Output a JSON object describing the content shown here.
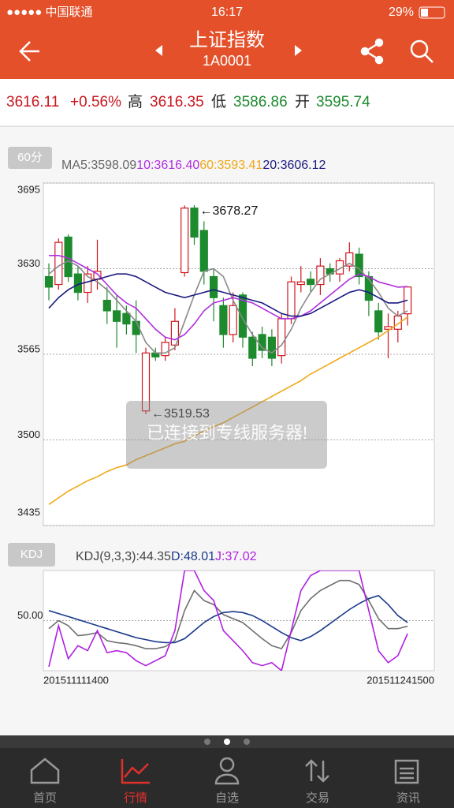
{
  "status_bar": {
    "carrier": "●●●●● 中国联通",
    "time": "16:17",
    "battery": "29%"
  },
  "header": {
    "title": "上证指数",
    "code": "1A0001"
  },
  "quote": {
    "price": "3616.11",
    "change": "+0.56%",
    "high_label": "高",
    "high": "3616.35",
    "low_label": "低",
    "low": "3586.86",
    "open_label": "开",
    "open": "3595.74"
  },
  "toast": "已连接到专线服务器!",
  "tabs": [
    "首页",
    "行情",
    "自选",
    "交易",
    "资讯"
  ],
  "chart_data": [
    {
      "type": "candlestick",
      "period_button": "60分",
      "up_color": "#d0161e",
      "down_color": "#1d8a2e",
      "open": [
        3624,
        3618,
        3654,
        3626,
        3612,
        3622,
        3606,
        3598,
        3596,
        3590,
        3522,
        3566,
        3564,
        3572,
        3627,
        3676,
        3659,
        3624,
        3602,
        3580,
        3610,
        3578,
        3580,
        3578,
        3564,
        3592,
        3618,
        3622,
        3618,
        3630,
        3626,
        3632,
        3641,
        3624,
        3598,
        3584,
        3584,
        3595.74
      ],
      "high": [
        3634,
        3653,
        3656,
        3632,
        3632,
        3652,
        3616,
        3610,
        3602,
        3606,
        3570,
        3570,
        3578,
        3600,
        3678,
        3678.27,
        3666,
        3630,
        3608,
        3612,
        3612,
        3582,
        3586,
        3584,
        3596,
        3624,
        3632,
        3628,
        3638,
        3634,
        3638,
        3650,
        3646,
        3628,
        3604,
        3596,
        3598,
        3616.35
      ],
      "low": [
        3606,
        3614,
        3620,
        3606,
        3604,
        3614,
        3588,
        3570,
        3580,
        3566,
        3519.53,
        3560,
        3560,
        3568,
        3624,
        3648,
        3618,
        3590,
        3570,
        3574,
        3570,
        3556,
        3562,
        3556,
        3558,
        3588,
        3612,
        3612,
        3610,
        3620,
        3620,
        3628,
        3618,
        3594,
        3576,
        3562,
        3574,
        3586.86
      ],
      "close": [
        3616,
        3650,
        3624,
        3612,
        3626,
        3628,
        3598,
        3590,
        3588,
        3580,
        3566,
        3563,
        3574,
        3590,
        3676,
        3654,
        3628,
        3608,
        3580,
        3602,
        3578,
        3562,
        3568,
        3562,
        3592,
        3620,
        3620,
        3618,
        3632,
        3626,
        3636,
        3642,
        3624,
        3606,
        3582,
        3586,
        3594,
        3616.11
      ],
      "series": [
        {
          "name": "MA5:3598.09",
          "color": "#8a8a8a",
          "values": [
            3626,
            3632,
            3636,
            3632,
            3624,
            3620,
            3614,
            3606,
            3598,
            3590,
            3574,
            3566,
            3566,
            3570,
            3590,
            3610,
            3628,
            3630,
            3624,
            3606,
            3592,
            3580,
            3570,
            3566,
            3572,
            3584,
            3600,
            3612,
            3622,
            3626,
            3630,
            3634,
            3630,
            3622,
            3612,
            3600,
            3594,
            3598.09
          ]
        },
        {
          "name": "10:3616.40",
          "color": "#b02ee0",
          "values": [
            3640,
            3640,
            3638,
            3634,
            3630,
            3626,
            3618,
            3610,
            3604,
            3600,
            3592,
            3584,
            3578,
            3576,
            3580,
            3588,
            3598,
            3604,
            3606,
            3608,
            3606,
            3604,
            3600,
            3596,
            3592,
            3592,
            3594,
            3598,
            3604,
            3610,
            3616,
            3622,
            3626,
            3624,
            3620,
            3618,
            3616,
            3616.4
          ]
        },
        {
          "name": "60:3593.41",
          "color": "#f0a818",
          "values": [
            3451,
            3456,
            3461,
            3465,
            3469,
            3472,
            3476,
            3479,
            3481,
            3485,
            3488,
            3491,
            3494,
            3497,
            3499,
            3503,
            3507,
            3510,
            3513,
            3517,
            3521,
            3525,
            3529,
            3533,
            3537,
            3541,
            3545,
            3550,
            3554,
            3558,
            3562,
            3566,
            3570,
            3574,
            3578,
            3583,
            3588,
            3593.41
          ]
        },
        {
          "name": "20:3606.12",
          "color": "#1a1a80",
          "values": [
            3600,
            3608,
            3614,
            3618,
            3620,
            3622,
            3624,
            3626,
            3626,
            3624,
            3620,
            3616,
            3612,
            3610,
            3608,
            3610,
            3612,
            3614,
            3612,
            3610,
            3608,
            3606,
            3604,
            3600,
            3596,
            3594,
            3594,
            3596,
            3600,
            3604,
            3608,
            3612,
            3614,
            3612,
            3608,
            3604,
            3604,
            3606.12
          ]
        }
      ],
      "ylim": [
        3435,
        3695
      ],
      "yticks": [
        3435,
        3500,
        3565,
        3630,
        3695
      ],
      "grid": true,
      "annotations": [
        {
          "text": "←3678.27",
          "value": 3678.27
        },
        {
          "text": "←3519.53",
          "value": 3519.53
        }
      ]
    },
    {
      "type": "line",
      "indicator_button": "KDJ",
      "categories": [
        "201511111400",
        null,
        null,
        null,
        null,
        null,
        null,
        null,
        null,
        null,
        null,
        null,
        null,
        null,
        null,
        null,
        null,
        null,
        null,
        null,
        null,
        null,
        null,
        null,
        null,
        null,
        null,
        null,
        null,
        null,
        null,
        null,
        null,
        null,
        null,
        null,
        null,
        "201511241500"
      ],
      "series": [
        {
          "name": "KDJ(9,3,3):44.35",
          "color": "#707070",
          "values": [
            42,
            50,
            45,
            35,
            36,
            38,
            30,
            28,
            27,
            25,
            22,
            22,
            24,
            30,
            60,
            80,
            70,
            66,
            56,
            52,
            48,
            40,
            32,
            25,
            22,
            38,
            60,
            72,
            80,
            85,
            90,
            90,
            86,
            70,
            52,
            42,
            42,
            44.35
          ]
        },
        {
          "name": "D:48.01",
          "color": "#1a3a8a",
          "values": [
            60,
            57,
            54,
            51,
            48,
            45,
            42,
            39,
            36,
            33,
            31,
            29,
            28,
            28,
            32,
            40,
            48,
            54,
            58,
            59,
            58,
            55,
            50,
            44,
            38,
            33,
            30,
            34,
            40,
            47,
            54,
            61,
            67,
            72,
            75,
            66,
            55,
            48.01
          ]
        },
        {
          "name": "J:37.02",
          "color": "#b020e0",
          "values": [
            4,
            45,
            12,
            25,
            20,
            40,
            18,
            20,
            18,
            10,
            5,
            10,
            15,
            40,
            100,
            100,
            80,
            70,
            40,
            30,
            20,
            8,
            5,
            8,
            0,
            40,
            80,
            95,
            100,
            100,
            100,
            100,
            100,
            60,
            20,
            8,
            15,
            37.02
          ]
        }
      ],
      "ylim": [
        0,
        100
      ],
      "yticks": [
        {
          "value": 50,
          "label": "50.00"
        }
      ],
      "grid": true
    }
  ]
}
